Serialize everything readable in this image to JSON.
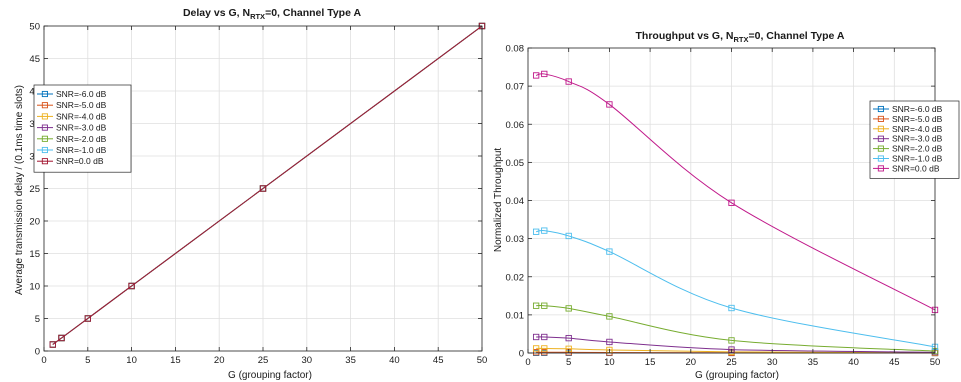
{
  "colors": {
    "series": [
      "#0072BD",
      "#D95319",
      "#EDB120",
      "#7E2F8E",
      "#77AC30",
      "#4DBEEE",
      "#A2142F"
    ],
    "series_right": [
      "#0072BD",
      "#D95319",
      "#EDB120",
      "#7E2F8E",
      "#77AC30",
      "#4DBEEE",
      "#C0198A"
    ],
    "axis": "#262626",
    "grid": "#dfdfdf"
  },
  "chart_data": [
    {
      "type": "line",
      "title": "Delay vs G, N",
      "title_sub": "RTX",
      "title_suffix": "=0, Channel Type A",
      "xlabel": "G (grouping factor)",
      "ylabel": "Average transmission delay / (0.1ms time slots)",
      "xlim": [
        0,
        50
      ],
      "ylim": [
        0,
        50
      ],
      "xticks": [
        "0",
        "5",
        "10",
        "15",
        "20",
        "25",
        "30",
        "35",
        "40",
        "45",
        "50"
      ],
      "yticks": [
        "0",
        "5",
        "10",
        "15",
        "20",
        "25",
        "30",
        "35",
        "40",
        "45",
        "50"
      ],
      "grid": true,
      "legend_position": "left",
      "marker": "square",
      "x": [
        1,
        2,
        5,
        10,
        25,
        50
      ],
      "series": [
        {
          "name": "SNR=-6.0 dB",
          "values": [
            1,
            2,
            5,
            10,
            25,
            50
          ]
        },
        {
          "name": "SNR=-5.0 dB",
          "values": [
            1,
            2,
            5,
            10,
            25,
            50
          ]
        },
        {
          "name": "SNR=-4.0 dB",
          "values": [
            1,
            2,
            5,
            10,
            25,
            50
          ]
        },
        {
          "name": "SNR=-3.0 dB",
          "values": [
            1,
            2,
            5,
            10,
            25,
            50
          ]
        },
        {
          "name": "SNR=-2.0 dB",
          "values": [
            1,
            2,
            5,
            10,
            25,
            50
          ]
        },
        {
          "name": "SNR=-1.0 dB",
          "values": [
            1,
            2,
            5,
            10,
            25,
            50
          ]
        },
        {
          "name": "SNR=0.0 dB",
          "values": [
            1,
            2,
            5,
            10,
            25,
            50
          ]
        }
      ]
    },
    {
      "type": "line",
      "title": "Throughput vs G, N",
      "title_sub": "RTX",
      "title_suffix": "=0, Channel Type A",
      "xlabel": "G (grouping factor)",
      "ylabel": "Normalized Throughput",
      "xlim": [
        0,
        50
      ],
      "ylim": [
        0,
        0.08
      ],
      "xticks": [
        "0",
        "5",
        "10",
        "15",
        "20",
        "25",
        "30",
        "35",
        "40",
        "45",
        "50"
      ],
      "yticks": [
        "0",
        "0.01",
        "0.02",
        "0.03",
        "0.04",
        "0.05",
        "0.06",
        "0.07",
        "0.08"
      ],
      "grid": true,
      "legend_position": "right",
      "marker": "square",
      "x": [
        1,
        2,
        5,
        10,
        25,
        50
      ],
      "series": [
        {
          "name": "SNR=-6.0 dB",
          "values": [
            5e-05,
            5e-05,
            5e-05,
            3e-05,
            1e-05,
            0.0
          ]
        },
        {
          "name": "SNR=-5.0 dB",
          "values": [
            0.0002,
            0.0002,
            0.00018,
            0.00012,
            5e-05,
            1e-05
          ]
        },
        {
          "name": "SNR=-4.0 dB",
          "values": [
            0.0012,
            0.0012,
            0.0011,
            0.0008,
            0.0003,
            5e-05
          ]
        },
        {
          "name": "SNR=-3.0 dB",
          "values": [
            0.0042,
            0.0042,
            0.0039,
            0.0029,
            0.0009,
            0.0002
          ]
        },
        {
          "name": "SNR=-2.0 dB",
          "values": [
            0.0124,
            0.0124,
            0.0117,
            0.0096,
            0.0033,
            0.0005
          ]
        },
        {
          "name": "SNR=-1.0 dB",
          "values": [
            0.0318,
            0.0321,
            0.0307,
            0.0266,
            0.0118,
            0.0016
          ]
        },
        {
          "name": "SNR=0.0 dB",
          "values": [
            0.0728,
            0.0732,
            0.0712,
            0.0652,
            0.0394,
            0.0113
          ]
        }
      ]
    }
  ]
}
